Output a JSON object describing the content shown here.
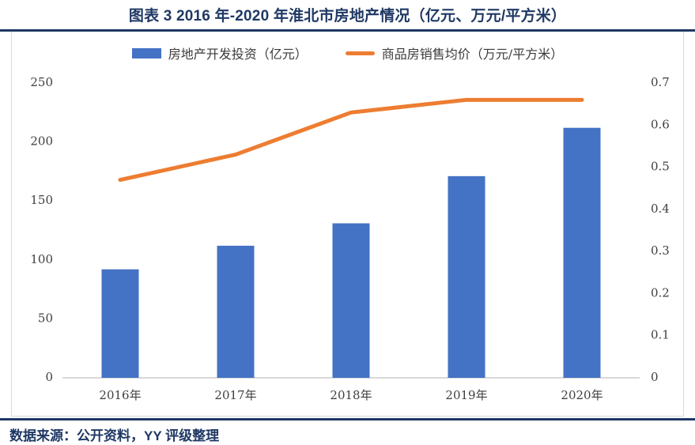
{
  "title": "图表 3 2016 年-2020 年淮北市房地产情况（亿元、万元/平方米）",
  "source": "数据来源：公开资料，YY 评级整理",
  "colors": {
    "bar": "#4472C4",
    "line": "#ED7D31",
    "navy": "#1F3864",
    "axis_text": "#3f3f3f",
    "axis_line": "#D9D9D9"
  },
  "chart_data": {
    "type": "bar",
    "subtype": "combo-bar-line",
    "title": "图表 3 2016 年-2020 年淮北市房地产情况（亿元、万元/平方米）",
    "categories": [
      "2016年",
      "2017年",
      "2018年",
      "2019年",
      "2020年"
    ],
    "series": [
      {
        "name": "房地产开发投资（亿元）",
        "type": "bar",
        "axis": "left",
        "color": "#4472C4",
        "values": [
          92,
          112,
          131,
          171,
          212
        ]
      },
      {
        "name": "商品房销售均价（万元/平方米）",
        "type": "line",
        "axis": "right",
        "color": "#ED7D31",
        "values": [
          0.47,
          0.53,
          0.63,
          0.66,
          0.66
        ]
      }
    ],
    "left_axis": {
      "lim": [
        0,
        250
      ],
      "ticks": [
        0,
        50,
        100,
        150,
        200,
        250
      ],
      "labels": [
        "0",
        "50",
        "100",
        "150",
        "200",
        "250"
      ]
    },
    "right_axis": {
      "lim": [
        0,
        0.7
      ],
      "ticks": [
        0,
        0.1,
        0.2,
        0.3,
        0.4,
        0.5,
        0.6,
        0.7
      ],
      "labels": [
        "0",
        "0.1",
        "0.2",
        "0.3",
        "0.4",
        "0.5",
        "0.6",
        "0.7"
      ]
    },
    "legend_position": "top",
    "grid": false,
    "xlabel": "",
    "ylabel_left": "亿元",
    "ylabel_right": "万元/平方米"
  }
}
